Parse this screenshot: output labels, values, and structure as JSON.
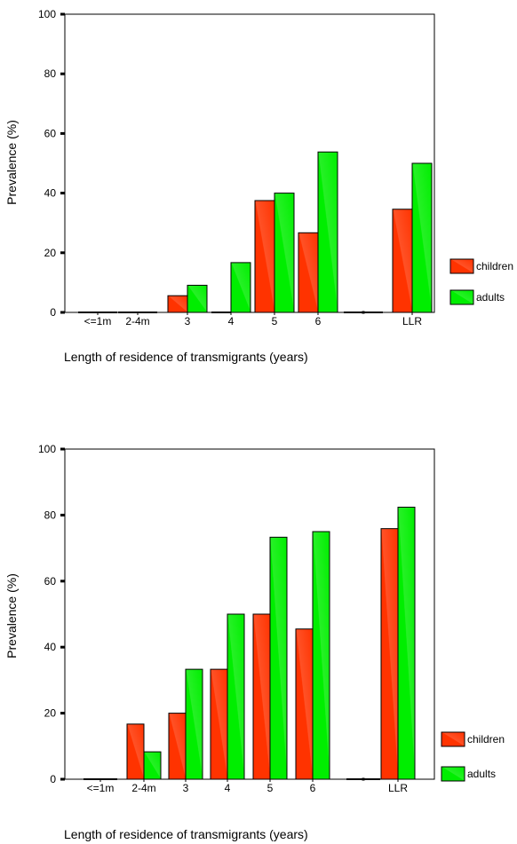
{
  "chart_data": [
    {
      "type": "bar",
      "categories": [
        "<=1m",
        "2-4m",
        "3",
        "4",
        "5",
        "6",
        "",
        "LLR"
      ],
      "ylabel": "Prevalence  (%)",
      "xlabel": "Length of residence of transmigrants (years)",
      "ylim": [
        0,
        100
      ],
      "yticks": [
        "0",
        "20",
        "40",
        "60",
        "80",
        "100"
      ],
      "legend_position": "right",
      "grid": false,
      "series": [
        {
          "name": "children",
          "color": "#ff3300",
          "values": [
            0,
            0,
            5.6,
            0,
            37.5,
            26.7,
            0,
            34.6
          ]
        },
        {
          "name": "adults",
          "color": "#00ee00",
          "values": [
            0,
            0,
            9.1,
            16.7,
            40.0,
            53.8,
            0,
            50.0
          ]
        }
      ]
    },
    {
      "type": "bar",
      "categories": [
        "<=1m",
        "2-4m",
        "3",
        "4",
        "5",
        "6",
        "",
        "LLR"
      ],
      "ylabel": "Prevalence  (%)",
      "xlabel": "Length of residence of transmigrants (years)",
      "ylim": [
        0,
        100
      ],
      "yticks": [
        "0",
        "20",
        "40",
        "60",
        "80",
        "100"
      ],
      "legend_position": "right",
      "grid": false,
      "series": [
        {
          "name": "children",
          "color": "#ff3300",
          "values": [
            0,
            16.7,
            20.0,
            33.3,
            50.0,
            45.5,
            0,
            75.9
          ]
        },
        {
          "name": "adults",
          "color": "#00ee00",
          "values": [
            0,
            8.3,
            33.3,
            50.0,
            73.3,
            75.0,
            0,
            82.4
          ]
        }
      ]
    }
  ]
}
